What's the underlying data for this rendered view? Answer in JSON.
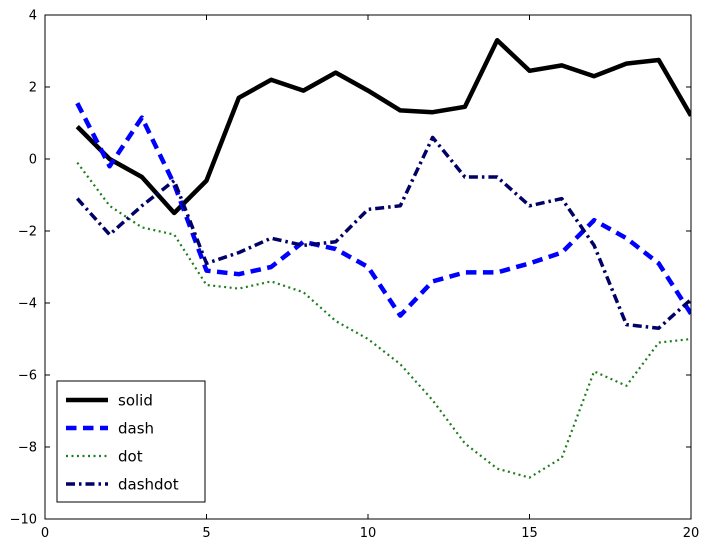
{
  "figure": {
    "background": "#ffffff",
    "frame_color": "#000000"
  },
  "chart_data": {
    "type": "line",
    "title": "",
    "xlabel": "",
    "ylabel": "",
    "xlim": [
      0,
      20
    ],
    "ylim": [
      -10,
      4
    ],
    "grid": false,
    "legend_position": "lower left",
    "xticks": [
      0,
      5,
      10,
      15,
      20
    ],
    "xtick_labels": [
      "0",
      "5",
      "10",
      "15",
      "20"
    ],
    "yticks": [
      4,
      2,
      0,
      -2,
      -4,
      -6,
      -8,
      -10
    ],
    "ytick_labels": [
      "4",
      "2",
      "0",
      "−2",
      "−4",
      "−6",
      "−8",
      "−10"
    ],
    "x": [
      1,
      2,
      3,
      4,
      5,
      6,
      7,
      8,
      9,
      10,
      11,
      12,
      13,
      14,
      15,
      16,
      17,
      18,
      19,
      20
    ],
    "series": [
      {
        "name": "solid",
        "color": "#000000",
        "linestyle": "solid",
        "linewidth": 4.5,
        "values": [
          0.9,
          0.0,
          -0.5,
          -1.5,
          -0.6,
          1.7,
          2.2,
          1.9,
          2.4,
          1.9,
          1.35,
          1.3,
          1.45,
          3.3,
          2.45,
          2.6,
          2.3,
          2.65,
          2.75,
          1.2
        ]
      },
      {
        "name": "dash",
        "color": "#0000ff",
        "linestyle": "dash",
        "linewidth": 4.5,
        "values": [
          1.55,
          -0.2,
          1.15,
          -0.7,
          -3.1,
          -3.2,
          -3.0,
          -2.3,
          -2.5,
          -3.0,
          -4.35,
          -3.4,
          -3.15,
          -3.15,
          -2.9,
          -2.6,
          -1.7,
          -2.2,
          -2.9,
          -4.3
        ]
      },
      {
        "name": "dot",
        "color": "#1e7d1e",
        "linestyle": "dot",
        "linewidth": 2.2,
        "values": [
          -0.1,
          -1.3,
          -1.9,
          -2.1,
          -3.5,
          -3.6,
          -3.4,
          -3.7,
          -4.5,
          -5.0,
          -5.7,
          -6.7,
          -7.9,
          -8.6,
          -8.85,
          -8.3,
          -5.9,
          -6.3,
          -5.1,
          -5.0
        ]
      },
      {
        "name": "dashdot",
        "color": "#000066",
        "linestyle": "dashdot",
        "linewidth": 3.5,
        "values": [
          -1.1,
          -2.1,
          -1.3,
          -0.6,
          -2.9,
          -2.6,
          -2.2,
          -2.4,
          -2.3,
          -1.4,
          -1.3,
          0.6,
          -0.5,
          -0.5,
          -1.3,
          -1.1,
          -2.4,
          -4.6,
          -4.7,
          -3.9
        ]
      }
    ],
    "legend_entries": [
      "solid",
      "dash",
      "dot",
      "dashdot"
    ]
  }
}
